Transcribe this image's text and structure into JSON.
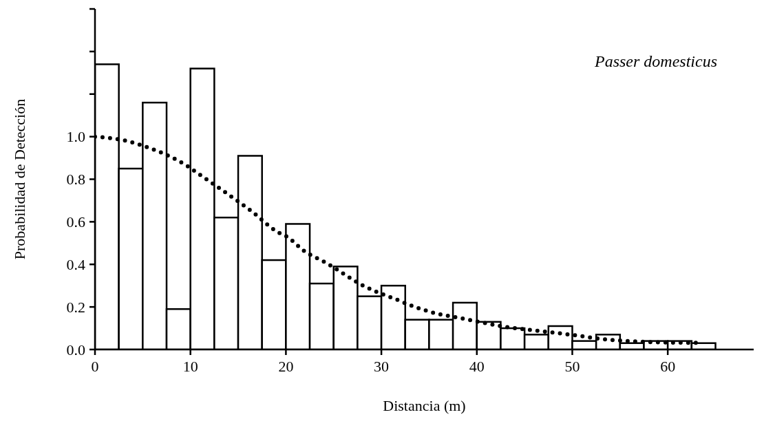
{
  "chart_data": {
    "type": "histogram",
    "xlabel": "Distancia (m)",
    "ylabel": "Probabilidad de Detección",
    "annotations": [
      "Passer domesticus"
    ],
    "bins": [
      0,
      2.5,
      5,
      7.5,
      10,
      12.5,
      15,
      17.5,
      20,
      22.5,
      25,
      27.5,
      30,
      32.5,
      35,
      37.5,
      40,
      42.5,
      45,
      47.5,
      50,
      52.5,
      55,
      57.5,
      60,
      62.5,
      65
    ],
    "values": [
      1.34,
      0.85,
      1.16,
      0.19,
      1.32,
      0.62,
      0.91,
      0.42,
      0.59,
      0.31,
      0.39,
      0.25,
      0.3,
      0.14,
      0.14,
      0.22,
      0.13,
      0.1,
      0.07,
      0.11,
      0.04,
      0.07,
      0.03,
      0.04,
      0.04,
      0.03
    ],
    "color": "#ffffff",
    "series": [
      {
        "type": "line",
        "color": "#000000",
        "line_style": "dotted",
        "marker": "none",
        "x": [
          0,
          3.3,
          5.5,
          7.7,
          9.75,
          10.7,
          13.6,
          16.4,
          19.2,
          20.1,
          22,
          24.1,
          28.1,
          30.1,
          31.3,
          33.5,
          35.7,
          38,
          40.2,
          42.5,
          46,
          50.6,
          53,
          57.6,
          63.7
        ],
        "values": [
          1.0,
          0.98,
          0.95,
          0.91,
          0.86,
          0.83,
          0.74,
          0.65,
          0.55,
          0.53,
          0.46,
          0.41,
          0.3,
          0.26,
          0.24,
          0.2,
          0.17,
          0.15,
          0.13,
          0.11,
          0.09,
          0.065,
          0.05,
          0.036,
          0.031
        ]
      }
    ],
    "xlim": [
      0,
      69
    ],
    "xticks": [
      0,
      10,
      20,
      30,
      40,
      50,
      60
    ],
    "ylim": [
      0,
      1.6
    ],
    "yticks": [
      {
        "value": 0,
        "label": "0.0"
      },
      {
        "value": 0.2,
        "label": "0.2"
      },
      {
        "value": 0.4,
        "label": "0.4"
      },
      {
        "value": 0.6,
        "label": "0.6"
      },
      {
        "value": 0.8,
        "label": "0.8"
      },
      {
        "value": 1,
        "label": "1.0"
      },
      {
        "value": 1.2,
        "label": null
      },
      {
        "value": 1.4,
        "label": null
      },
      {
        "value": 1.6,
        "label": null
      }
    ],
    "grid": false,
    "legend": false
  }
}
